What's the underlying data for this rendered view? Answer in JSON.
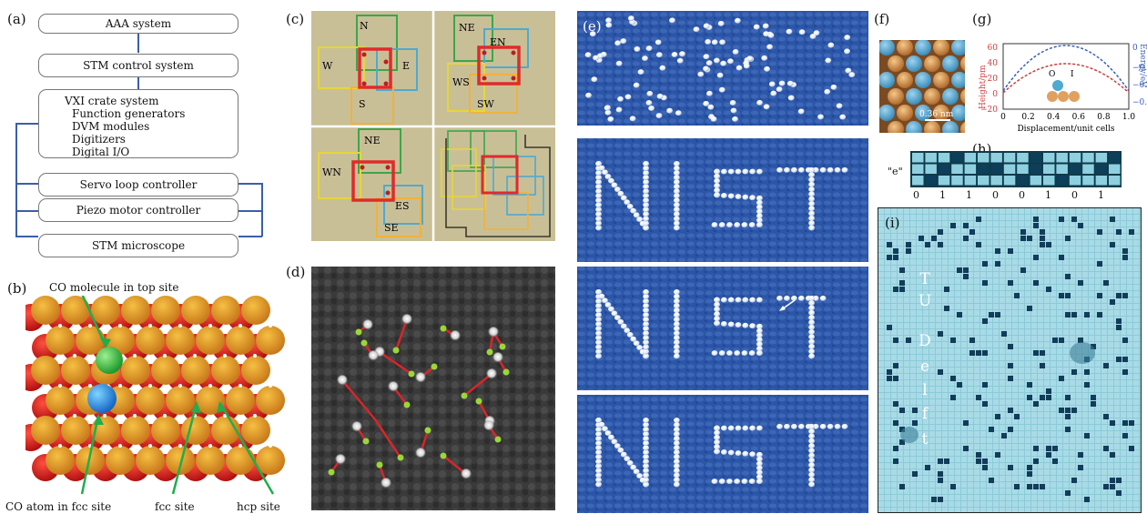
{
  "panel_a": {
    "label": "(a)",
    "boxes": [
      "AAA system",
      "STM control system"
    ],
    "vxi_title": "VXI crate system",
    "vxi_items": [
      "Function generators",
      "DVM modules",
      "Digitizers",
      "Digital I/O"
    ],
    "lower_boxes": [
      "Servo loop controller",
      "Piezo motor controller",
      "STM microscope"
    ]
  },
  "panel_b": {
    "label": "(b)",
    "annotations": {
      "top": "CO molecule in top site",
      "fcc_atom": "CO atom in fcc site",
      "fcc": "fcc site",
      "hcp": "hcp site"
    }
  },
  "panel_c": {
    "label": "(c)",
    "q1": [
      "N",
      "W",
      "E",
      "S"
    ],
    "q2": [
      "NE",
      "EN",
      "WS",
      "SW"
    ],
    "q3": [
      "NE",
      "WN",
      "ES",
      "SE"
    ]
  },
  "panel_d": {
    "label": "(d)"
  },
  "panel_e": {
    "label": "(e)",
    "text": "NIST"
  },
  "panel_f": {
    "label": "(f)",
    "scale": "0.36 nm"
  },
  "panel_g": {
    "label": "(g)",
    "ylabel_left": "Height/pm",
    "ylabel_right": "Energy/eV",
    "xlabel": "Displacement/unit cells",
    "xticks": [
      "0",
      "0.2",
      "0.4",
      "0.6",
      "0.8",
      "1.0"
    ],
    "yticks_left": [
      "60",
      "40",
      "20",
      "0",
      "−20"
    ],
    "yticks_right": [
      "0",
      "−0.1",
      "−0.2",
      "−0.3"
    ],
    "markers": [
      "O",
      "I"
    ]
  },
  "panel_h": {
    "label": "(h)",
    "row_label": "\"e\"",
    "bits": [
      "0",
      "1",
      "1",
      "0",
      "0",
      "1",
      "0",
      "1"
    ]
  },
  "panel_i": {
    "label": "(i)",
    "letters": [
      "T",
      "U",
      "D",
      "e",
      "l",
      "f",
      "t"
    ]
  }
}
